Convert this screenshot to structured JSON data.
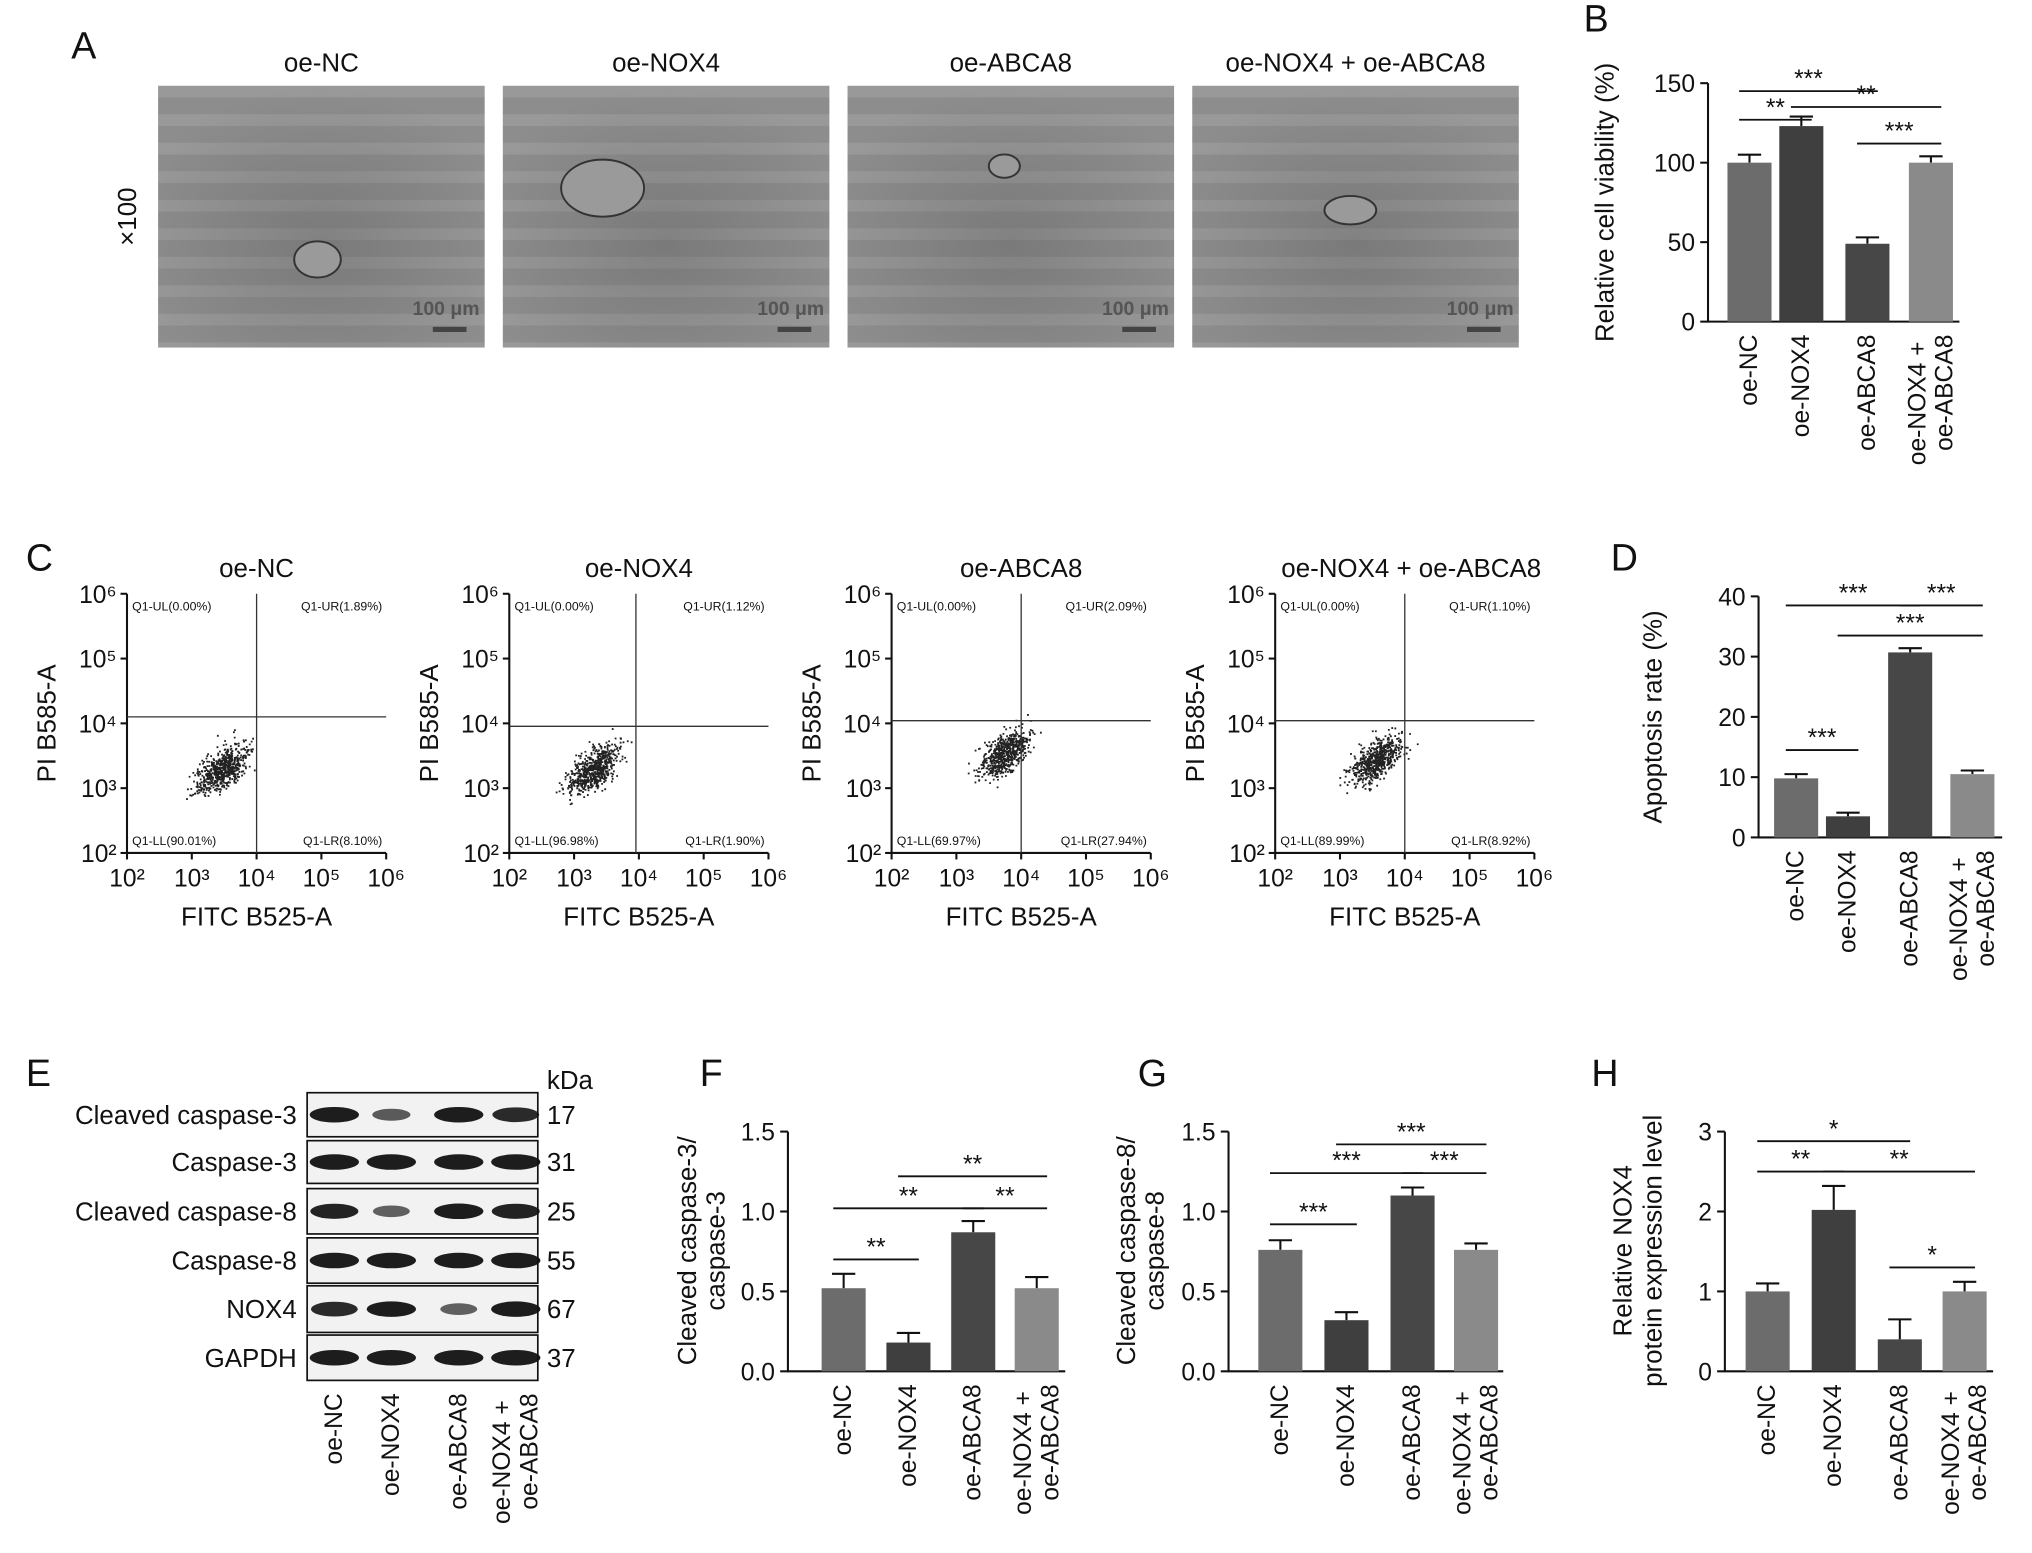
{
  "panel_labels": [
    "A",
    "B",
    "C",
    "D",
    "E",
    "F",
    "G",
    "H"
  ],
  "panel_a": {
    "magnification": "×100",
    "images": [
      {
        "title": "oe-NC",
        "scale_bar": "100 μm"
      },
      {
        "title": "oe-NOX4",
        "scale_bar": "100 μm"
      },
      {
        "title": "oe-ABCA8",
        "scale_bar": "100 μm"
      },
      {
        "title": "oe-NOX4 + oe-ABCA8",
        "scale_bar": "100 μm"
      }
    ]
  },
  "flow": {
    "x_label": "FITC B525-A",
    "y_label": "PI B585-A",
    "log": true,
    "lim": [
      100,
      1000000
    ],
    "ticks": [
      {
        "value": 100,
        "label": "10²"
      },
      {
        "value": 1000,
        "label": "10³"
      },
      {
        "value": 10000,
        "label": "10⁴"
      },
      {
        "value": 100000,
        "label": "10⁵"
      },
      {
        "value": 1000000,
        "label": "10⁶"
      }
    ],
    "plots": [
      {
        "title": "oe-NC",
        "gate": [
          10000,
          12600
        ],
        "quadrants": {
          "UL": "Q1-UL(0.00%)",
          "UR": "Q1-UR(1.89%)",
          "LL": "Q1-LL(90.01%)",
          "LR": "Q1-LR(8.10%)"
        }
      },
      {
        "title": "oe-NOX4",
        "gate": [
          9000,
          9000
        ],
        "quadrants": {
          "UL": "Q1-UL(0.00%)",
          "UR": "Q1-UR(1.12%)",
          "LL": "Q1-LL(96.98%)",
          "LR": "Q1-LR(1.90%)"
        }
      },
      {
        "title": "oe-ABCA8",
        "gate": [
          10000,
          11000
        ],
        "quadrants": {
          "UL": "Q1-UL(0.00%)",
          "UR": "Q1-UR(2.09%)",
          "LL": "Q1-LL(69.97%)",
          "LR": "Q1-LR(27.94%)"
        }
      },
      {
        "title": "oe-NOX4 + oe-ABCA8",
        "gate": [
          10000,
          11000
        ],
        "quadrants": {
          "UL": "Q1-UL(0.00%)",
          "UR": "Q1-UR(1.10%)",
          "LL": "Q1-LL(89.99%)",
          "LR": "Q1-LR(8.92%)"
        }
      }
    ]
  },
  "western": {
    "kda_title": "kDa",
    "rows": [
      {
        "label": "Cleaved caspase-3",
        "kda": 17
      },
      {
        "label": "Caspase-3",
        "kda": 31
      },
      {
        "label": "Cleaved caspase-8",
        "kda": 25
      },
      {
        "label": "Caspase-8",
        "kda": 55
      },
      {
        "label": "NOX4",
        "kda": 67
      },
      {
        "label": "GAPDH",
        "kda": 37
      }
    ],
    "lanes": [
      "oe-NC",
      "oe-NOX4",
      "oe-ABCA8",
      "oe-NOX4 + oe-ABCA8"
    ]
  },
  "chart_data": [
    {
      "type": "bar",
      "y_label": [
        "Relative cell viability (%)"
      ],
      "categories": [
        "oe-NC",
        "oe-NOX4",
        "oe-ABCA8",
        "oe-NOX4 + oe-ABCA8"
      ],
      "values": [
        100,
        123,
        49,
        100
      ],
      "errors": [
        5,
        6,
        4,
        4
      ],
      "colors": [
        "#6c6c6c",
        "#3f3f3f",
        "#474747",
        "#8a8a8a"
      ],
      "ylim": [
        0,
        150
      ],
      "yticks": [
        0,
        50,
        100,
        150
      ],
      "significance": [
        {
          "label": "***",
          "from": 0,
          "to": 2,
          "y": 145
        },
        {
          "label": "**",
          "from": 0,
          "to": 1,
          "y": 127
        },
        {
          "label": "**",
          "from": 1,
          "to": 3,
          "y": 135
        },
        {
          "label": "***",
          "from": 2,
          "to": 3,
          "y": 112
        }
      ]
    },
    {
      "type": "bar",
      "y_label": [
        "Apoptosis rate (%)"
      ],
      "categories": [
        "oe-NC",
        "oe-NOX4",
        "oe-ABCA8",
        "oe-NOX4 + oe-ABCA8"
      ],
      "values": [
        9.8,
        3.5,
        30.7,
        10.5
      ],
      "errors": [
        0.7,
        0.6,
        0.7,
        0.6
      ],
      "colors": [
        "#6c6c6c",
        "#3f3f3f",
        "#474747",
        "#8a8a8a"
      ],
      "ylim": [
        0,
        40
      ],
      "yticks": [
        0,
        10,
        20,
        30,
        40
      ],
      "significance": [
        {
          "label": "***",
          "from": 0,
          "to": 2,
          "y": 38.5
        },
        {
          "label": "***",
          "from": 2,
          "to": 3,
          "y": 38.5
        },
        {
          "label": "***",
          "from": 1,
          "to": 3,
          "y": 33.5
        },
        {
          "label": "***",
          "from": 0,
          "to": 1,
          "y": 14.5
        }
      ]
    },
    {
      "type": "bar",
      "y_label": [
        "Cleaved caspase-3/",
        "caspase-3"
      ],
      "categories": [
        "oe-NC",
        "oe-NOX4",
        "oe-ABCA8",
        "oe-NOX4 + oe-ABCA8"
      ],
      "values": [
        0.52,
        0.18,
        0.87,
        0.52
      ],
      "errors": [
        0.09,
        0.06,
        0.07,
        0.07
      ],
      "colors": [
        "#6c6c6c",
        "#3f3f3f",
        "#474747",
        "#8a8a8a"
      ],
      "ylim": [
        0,
        1.5
      ],
      "yticks": [
        {
          "value": 0,
          "label": "0.0"
        },
        0.5,
        {
          "value": 1,
          "label": "1.0"
        },
        1.5
      ],
      "significance": [
        {
          "label": "**",
          "from": 0,
          "to": 1,
          "y": 0.7
        },
        {
          "label": "**",
          "from": 0,
          "to": 2,
          "y": 1.02
        },
        {
          "label": "**",
          "from": 1,
          "to": 3,
          "y": 1.22
        },
        {
          "label": "**",
          "from": 2,
          "to": 3,
          "y": 1.02
        }
      ]
    },
    {
      "type": "bar",
      "y_label": [
        "Cleaved caspase-8/",
        "caspase-8"
      ],
      "categories": [
        "oe-NC",
        "oe-NOX4",
        "oe-ABCA8",
        "oe-NOX4 + oe-ABCA8"
      ],
      "values": [
        0.76,
        0.32,
        1.1,
        0.76
      ],
      "errors": [
        0.06,
        0.05,
        0.05,
        0.04
      ],
      "colors": [
        "#6c6c6c",
        "#3f3f3f",
        "#474747",
        "#8a8a8a"
      ],
      "ylim": [
        0,
        1.5
      ],
      "yticks": [
        {
          "value": 0,
          "label": "0.0"
        },
        0.5,
        {
          "value": 1,
          "label": "1.0"
        },
        1.5
      ],
      "significance": [
        {
          "label": "***",
          "from": 0,
          "to": 1,
          "y": 0.92
        },
        {
          "label": "***",
          "from": 0,
          "to": 2,
          "y": 1.24
        },
        {
          "label": "***",
          "from": 1,
          "to": 3,
          "y": 1.42
        },
        {
          "label": "***",
          "from": 2,
          "to": 3,
          "y": 1.24
        }
      ]
    },
    {
      "type": "bar",
      "y_label": [
        "Relative NOX4",
        "protein expression level"
      ],
      "categories": [
        "oe-NC",
        "oe-NOX4",
        "oe-ABCA8",
        "oe-NOX4 + oe-ABCA8"
      ],
      "values": [
        1.0,
        2.02,
        0.4,
        1.0
      ],
      "errors": [
        0.1,
        0.3,
        0.25,
        0.12
      ],
      "colors": [
        "#6c6c6c",
        "#3f3f3f",
        "#474747",
        "#8a8a8a"
      ],
      "ylim": [
        0,
        3
      ],
      "yticks": [
        0,
        1,
        2,
        3
      ],
      "significance": [
        {
          "label": "*",
          "from": 0,
          "to": 2,
          "y": 2.88
        },
        {
          "label": "**",
          "from": 0,
          "to": 1,
          "y": 2.5
        },
        {
          "label": "**",
          "from": 1,
          "to": 3,
          "y": 2.5
        },
        {
          "label": "*",
          "from": 2,
          "to": 3,
          "y": 1.3
        }
      ]
    }
  ]
}
